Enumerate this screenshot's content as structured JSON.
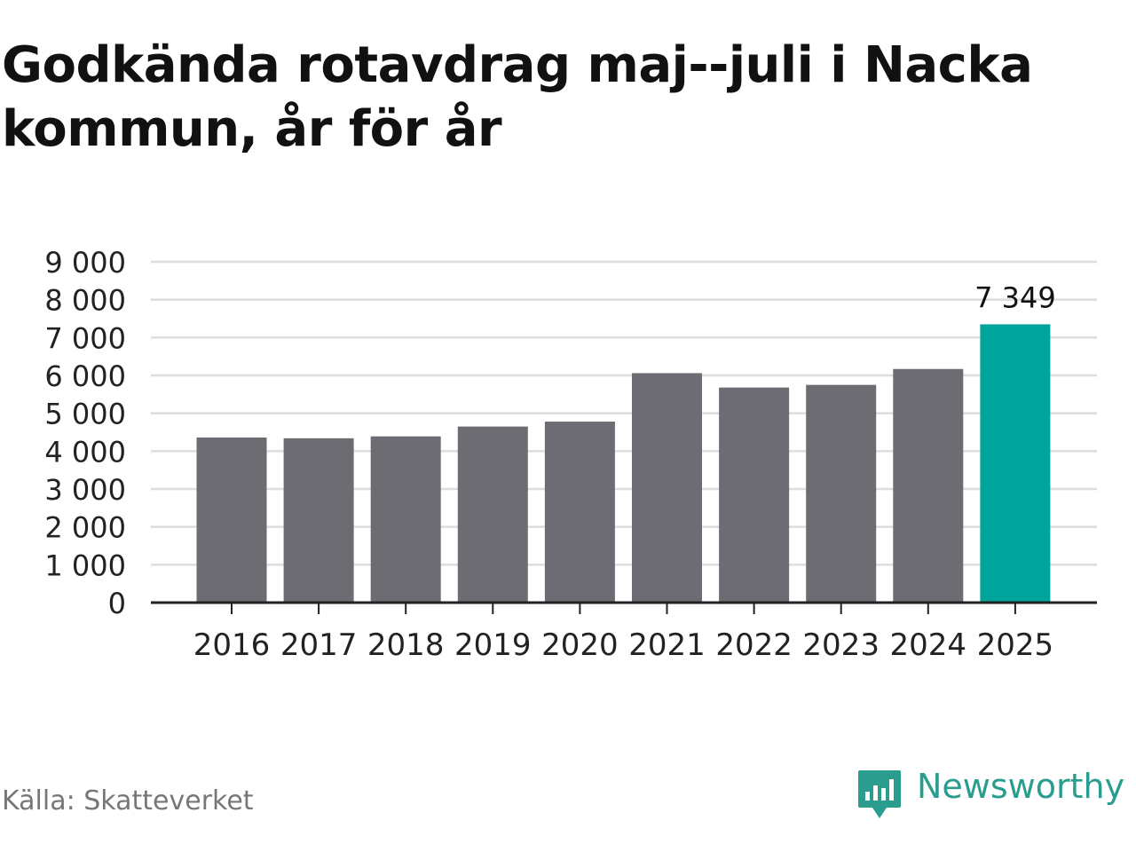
{
  "title": "Godkända rotavdrag maj--juli i Nacka kommun, år för år",
  "source": "Källa: Skatteverket",
  "brand": "Newsworthy",
  "colors": {
    "bar": "#6d6c72",
    "highlight": "#00a49a",
    "grid": "#dddddd",
    "axis": "#222222",
    "brand": "#2a9d8f"
  },
  "chart_data": {
    "type": "bar",
    "title": "Godkända rotavdrag maj--juli i Nacka kommun, år för år",
    "xlabel": "",
    "ylabel": "",
    "categories": [
      "2016",
      "2017",
      "2018",
      "2019",
      "2020",
      "2021",
      "2022",
      "2023",
      "2024",
      "2025"
    ],
    "values": [
      4360,
      4340,
      4390,
      4650,
      4780,
      6060,
      5680,
      5750,
      6170,
      7349
    ],
    "highlight_index": 9,
    "data_labels": [
      {
        "index": 9,
        "text": "7 349"
      }
    ],
    "ylim": [
      0,
      9000
    ],
    "yticks": [
      0,
      1000,
      2000,
      3000,
      4000,
      5000,
      6000,
      7000,
      8000,
      9000
    ],
    "ytick_labels": [
      "0",
      "1 000",
      "2 000",
      "3 000",
      "4 000",
      "5 000",
      "6 000",
      "7 000",
      "8 000",
      "9 000"
    ],
    "grid": true,
    "legend": "none"
  }
}
